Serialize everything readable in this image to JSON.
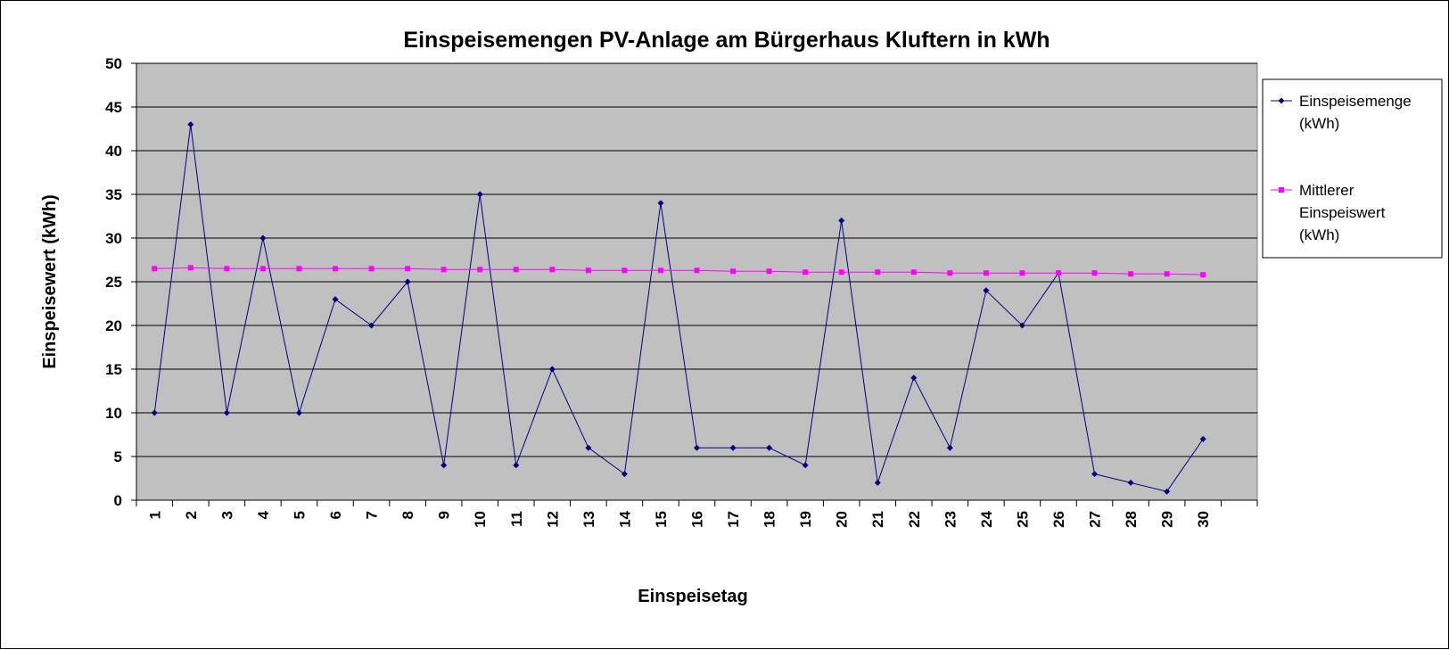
{
  "chart_data": {
    "type": "line",
    "title": "Einspeisemengen PV-Anlage am Bürgerhaus Kluftern in kWh",
    "xlabel": "Einspeisetag",
    "ylabel": "Einspeisewert (kWh)",
    "ylim": [
      0,
      50
    ],
    "ytick_step": 5,
    "yticks": [
      "0",
      "5",
      "10",
      "15",
      "20",
      "25",
      "30",
      "35",
      "40",
      "45",
      "50"
    ],
    "categories": [
      "1",
      "2",
      "3",
      "4",
      "5",
      "6",
      "7",
      "8",
      "9",
      "10",
      "11",
      "12",
      "13",
      "14",
      "15",
      "16",
      "17",
      "18",
      "19",
      "20",
      "21",
      "22",
      "23",
      "24",
      "25",
      "26",
      "27",
      "28",
      "29",
      "30"
    ],
    "grid": true,
    "legend_position": "right",
    "plot_background": "#c0c0c0",
    "series": [
      {
        "name_lines": [
          "Einspeisemenge",
          "(kWh)"
        ],
        "color": "#000080",
        "marker": "diamond",
        "values": [
          10,
          43,
          10,
          30,
          10,
          23,
          20,
          25,
          4,
          35,
          4,
          15,
          6,
          3,
          34,
          6,
          6,
          6,
          4,
          32,
          2,
          14,
          6,
          24,
          20,
          26,
          3,
          2,
          1,
          7
        ]
      },
      {
        "name_lines": [
          "Mittlerer",
          "Einspeiswert",
          "(kWh)"
        ],
        "color": "#ff00ff",
        "marker": "square",
        "values": [
          26.5,
          26.6,
          26.5,
          26.5,
          26.5,
          26.5,
          26.5,
          26.5,
          26.4,
          26.4,
          26.4,
          26.4,
          26.3,
          26.3,
          26.3,
          26.3,
          26.2,
          26.2,
          26.1,
          26.1,
          26.1,
          26.1,
          26.0,
          26.0,
          26.0,
          26.0,
          26.0,
          25.9,
          25.9,
          25.8
        ]
      }
    ]
  }
}
